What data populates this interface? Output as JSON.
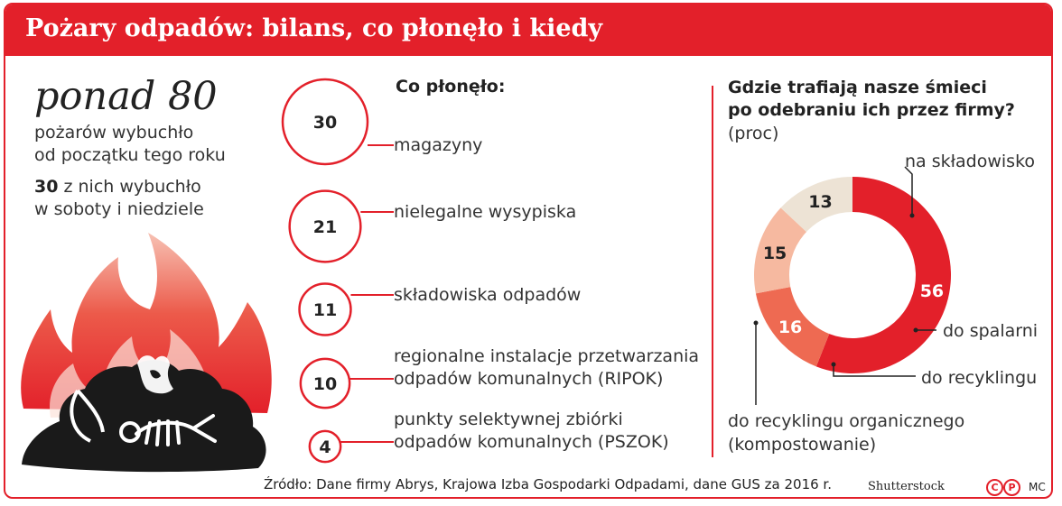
{
  "title": "Pożary odpadów: bilans, co płonęło i kiedy",
  "left": {
    "big": "ponad 80",
    "line1": "pożarów wybuchło",
    "line2": "od początku tego roku",
    "weekend_num": "30",
    "weekend_rest": " z nich wybuchło",
    "line4": "w soboty i niedziele"
  },
  "middle": {
    "heading": "Co płonęło:"
  },
  "right": {
    "heading1": "Gdzie trafiają nasze śmieci",
    "heading2": "po odebraniu ich przez firmy?",
    "unit": "(proc)"
  },
  "source": "Źródło: Dane firmy Abrys, Krajowa Izba Gospodarki Odpadami, dane GUS za 2016 r.",
  "credit": "Shutterstock",
  "cp_c": "C",
  "cp_p": "P",
  "mc": "MC",
  "colors": {
    "red": "#e3202a",
    "salmon": "#ee6a52",
    "peach": "#f6b9a0",
    "beige": "#ede3d5"
  },
  "chart_data": [
    {
      "type": "bubble",
      "title": "Co płonęło:",
      "categories": [
        "magazyny",
        "nielegalne wysypiska",
        "składowiska odpadów",
        "regionalne instalacje przetwarzania odpadów komunalnych (RIPOK)",
        "punkty selektywnej zbiórki odpadów komunalnych (PSZOK)"
      ],
      "labels": [
        [
          "magazyny"
        ],
        [
          "nielegalne wysypiska"
        ],
        [
          "składowiska odpadów"
        ],
        [
          "regionalne instalacje przetwarzania",
          "odpadów komunalnych (RIPOK)"
        ],
        [
          "punkty selektywnej zbiórki",
          "odpadów komunalnych (PSZOK)"
        ]
      ],
      "values": [
        30,
        21,
        11,
        10,
        4
      ]
    },
    {
      "type": "pie",
      "title": "Gdzie trafiają nasze śmieci po odebraniu ich przez firmy?",
      "unit": "(proc)",
      "categories": [
        "na składowisko",
        "do spalarni",
        "do recyklingu",
        "do recyklingu organicznego (kompostowanie)"
      ],
      "labels": [
        [
          "na składowisko"
        ],
        [
          "do spalarni"
        ],
        [
          "do recyklingu"
        ],
        [
          "do recyklingu organicznego",
          "(kompostowanie)"
        ]
      ],
      "values": [
        56,
        16,
        15,
        13
      ],
      "colors": [
        "#e3202a",
        "#ee6a52",
        "#f6b9a0",
        "#ede3d5"
      ]
    }
  ]
}
